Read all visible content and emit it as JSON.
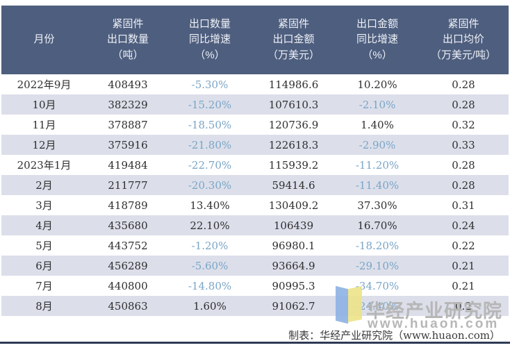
{
  "header": {
    "columns": [
      {
        "id": "month",
        "lines": [
          "月份"
        ]
      },
      {
        "id": "export-quantity",
        "lines": [
          "紧固件",
          "出口数量",
          "（吨）"
        ]
      },
      {
        "id": "quantity-yoy",
        "lines": [
          "出口数量",
          "同比增速",
          "（%）"
        ]
      },
      {
        "id": "export-value",
        "lines": [
          "紧固件",
          "出口金额",
          "（万美元）"
        ]
      },
      {
        "id": "value-yoy",
        "lines": [
          "出口金额",
          "同比增速",
          "（%）"
        ]
      },
      {
        "id": "avg-price",
        "lines": [
          "紧固件",
          "出口均价",
          "（万美元/吨）"
        ]
      }
    ]
  },
  "chart_data": {
    "type": "table",
    "columns": [
      "月份",
      "紧固件出口数量（吨）",
      "出口数量同比增速（%）",
      "紧固件出口金额（万美元）",
      "出口金额同比增速（%）",
      "紧固件出口均价（万美元/吨）"
    ],
    "rows": [
      [
        "2022年9月",
        "408493",
        "-5.30%",
        "114986.6",
        "10.20%",
        "0.28"
      ],
      [
        "10月",
        "382329",
        "-15.20%",
        "107610.3",
        "-2.10%",
        "0.28"
      ],
      [
        "11月",
        "378887",
        "-18.50%",
        "120736.9",
        "1.40%",
        "0.32"
      ],
      [
        "12月",
        "375916",
        "-21.80%",
        "122618.3",
        "-2.90%",
        "0.33"
      ],
      [
        "2023年1月",
        "419484",
        "-22.70%",
        "115939.2",
        "-11.20%",
        "0.28"
      ],
      [
        "2月",
        "211777",
        "-20.30%",
        "59414.6",
        "-11.40%",
        "0.28"
      ],
      [
        "3月",
        "418789",
        "13.40%",
        "130409.2",
        "37.30%",
        "0.31"
      ],
      [
        "4月",
        "435680",
        "22.10%",
        "106439",
        "16.70%",
        "0.24"
      ],
      [
        "5月",
        "443752",
        "-1.20%",
        "96980.1",
        "-18.20%",
        "0.22"
      ],
      [
        "6月",
        "456289",
        "-5.60%",
        "93664.9",
        "-29.10%",
        "0.21"
      ],
      [
        "7月",
        "440800",
        "-14.80%",
        "90995.3",
        "-34.70%",
        "0.21"
      ],
      [
        "8月",
        "450863",
        "1.60%",
        "91062.7",
        "-24.40%",
        "0.2"
      ]
    ]
  },
  "footer": {
    "credit": "制表：华经产业研究院（www.huaon.com）"
  },
  "watermark": {
    "org": "华经产业研究院",
    "url": "www.huaon.com"
  },
  "colors": {
    "header_bg": "#4e5e7e",
    "header_text": "#eef1f7",
    "alt_row_bg": "#dcdfea",
    "body_text": "#2e2e2e",
    "negative_value": "#79a5c7",
    "accent_line": "#2d3a55",
    "watermark_gray": "#b6b6b6",
    "logo_blue": "#8db1e3",
    "logo_yellow": "#ece387"
  }
}
